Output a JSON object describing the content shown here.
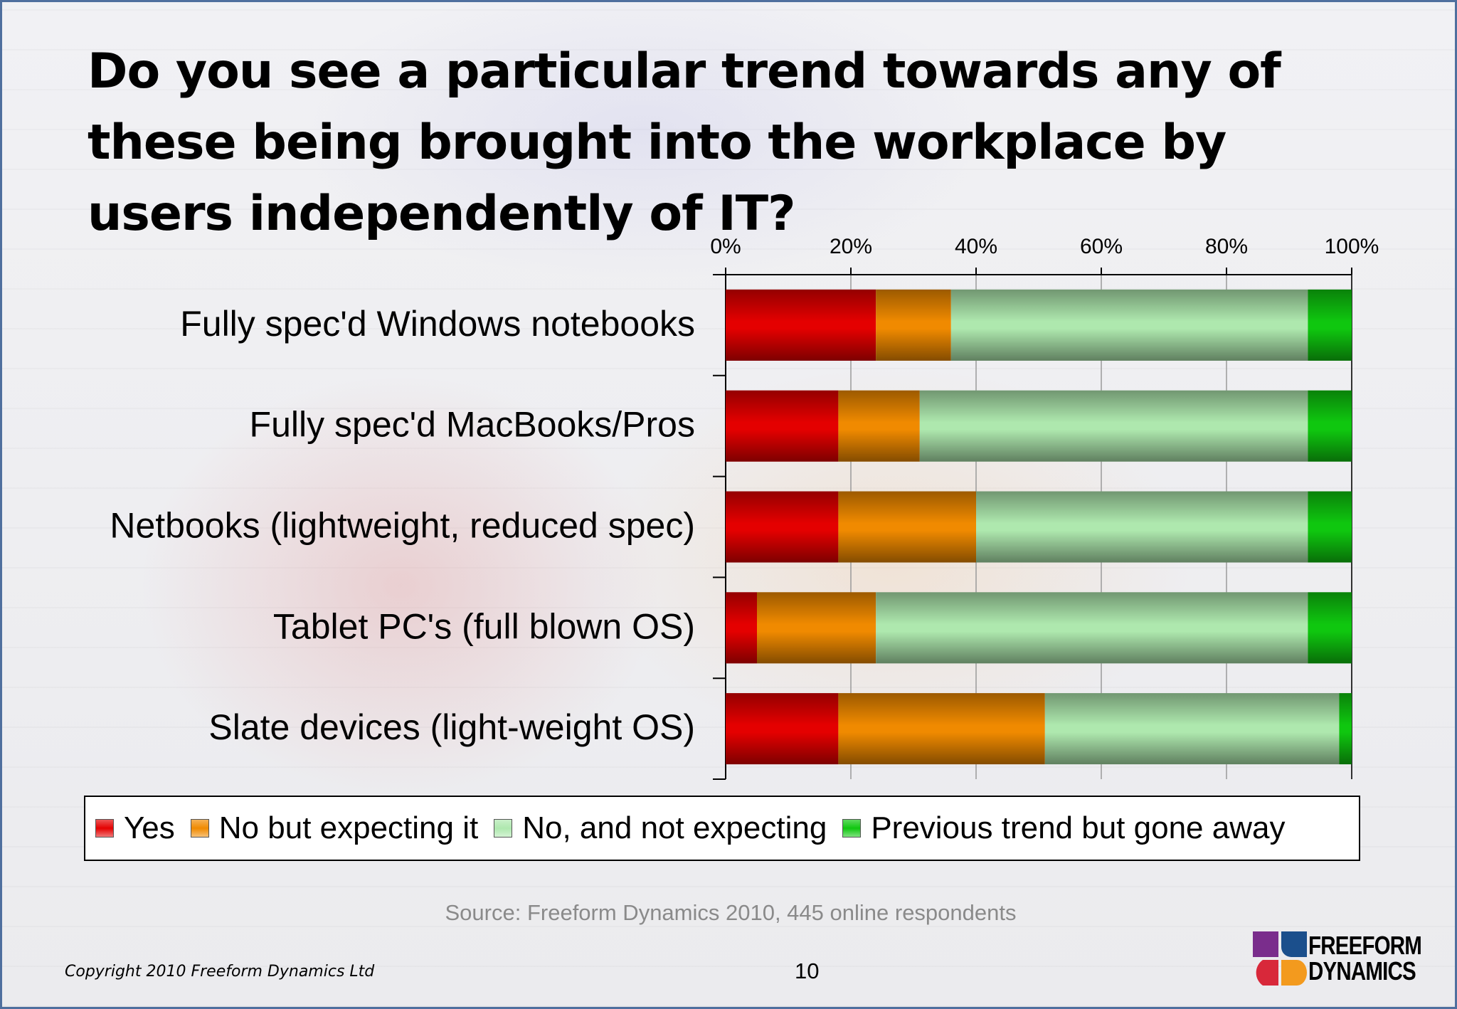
{
  "slide": {
    "title": "Do you see a particular trend towards any of these being brought into the workplace by users independently of IT?",
    "source": "Source: Freeform Dynamics 2010, 445 online respondents",
    "copyright": "Copyright 2010 Freeform Dynamics Ltd",
    "page_number": "10",
    "logo": {
      "line1": "FREEFORM",
      "line2": "DYNAMICS"
    }
  },
  "colors": {
    "yes": "#e40000",
    "no_but_expecting": "#f08a00",
    "no_not_expecting": "#aee8ae",
    "previous_trend": "#0fc70f"
  },
  "chart_data": {
    "type": "bar",
    "orientation": "horizontal",
    "stacked": true,
    "axis_position": "top",
    "xlim": [
      0,
      100
    ],
    "xticks": [
      "0%",
      "20%",
      "40%",
      "60%",
      "80%",
      "100%"
    ],
    "grid": true,
    "legend_position": "bottom",
    "categories": [
      "Fully spec'd Windows notebooks",
      "Fully spec'd MacBooks/Pros",
      "Netbooks (lightweight, reduced spec)",
      "Tablet PC's (full blown OS)",
      "Slate devices (light-weight OS)"
    ],
    "series": [
      {
        "name": "Yes",
        "color": "#e40000",
        "values": [
          24,
          18,
          18,
          5,
          18
        ]
      },
      {
        "name": "No but expecting it",
        "color": "#f08a00",
        "values": [
          12,
          13,
          22,
          19,
          33
        ]
      },
      {
        "name": "No, and not expecting",
        "color": "#aee8ae",
        "values": [
          57,
          62,
          53,
          69,
          47
        ]
      },
      {
        "name": "Previous trend but gone away",
        "color": "#0fc70f",
        "values": [
          7,
          7,
          7,
          7,
          2
        ]
      }
    ]
  }
}
